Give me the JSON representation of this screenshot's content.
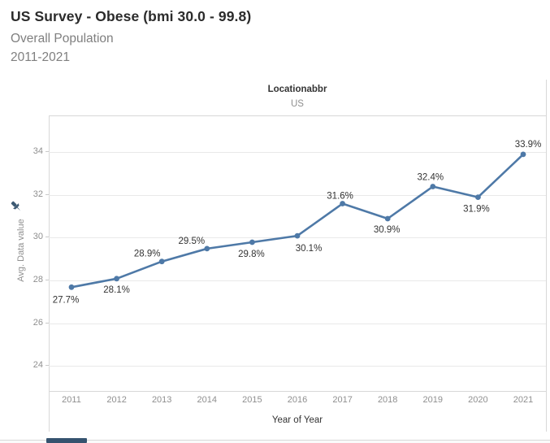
{
  "header": {
    "title": "US Survey - Obese (bmi 30.0 - 99.8)",
    "subtitle1": "Overall Population",
    "subtitle2": "2011-2021"
  },
  "chart": {
    "column_header": {
      "label": "Locationabbr",
      "value": "US"
    },
    "y_axis": {
      "title": "Avg. Data value",
      "ticks": [
        34,
        32,
        30,
        28,
        26,
        24
      ]
    },
    "x_axis": {
      "title": "Year of Year"
    }
  },
  "chart_data": {
    "type": "line",
    "title": "US Survey - Obese (bmi 30.0 - 99.8)",
    "subtitle": "Overall Population 2011-2021",
    "series_name": "Avg. Data value",
    "x": [
      2011,
      2012,
      2013,
      2014,
      2015,
      2016,
      2017,
      2018,
      2019,
      2020,
      2021
    ],
    "values": [
      27.7,
      28.1,
      28.9,
      29.5,
      29.8,
      30.1,
      31.6,
      30.9,
      32.4,
      31.9,
      33.9
    ],
    "labels": [
      "27.7%",
      "28.1%",
      "28.9%",
      "29.5%",
      "29.8%",
      "30.1%",
      "31.6%",
      "30.9%",
      "32.4%",
      "31.9%",
      "33.9%"
    ],
    "xlabel": "Year of Year",
    "ylabel": "Avg. Data value",
    "ylim": [
      23.3,
      35.6
    ],
    "grid": "horizontal",
    "legend": "none",
    "column_header": "Locationabbr",
    "column_value": "US",
    "label_offsets": {
      "dx": [
        -7,
        0,
        -18,
        -19,
        -1,
        14,
        -3,
        -1,
        -3,
        -2,
        6
      ],
      "dy": [
        19,
        17,
        -6,
        -6,
        18,
        19,
        -6,
        17,
        -8,
        18,
        -9
      ]
    }
  },
  "colors": {
    "line": "#4e79a7",
    "marker": "#4e79a7",
    "data_label": "#333333",
    "axis_text": "#8f8f8f",
    "header_text": "#333333",
    "grid": "#e9e9e9",
    "border": "#d8d8d8",
    "pin": "#3d5a73",
    "scrollbar_thumb": "#35536f"
  }
}
